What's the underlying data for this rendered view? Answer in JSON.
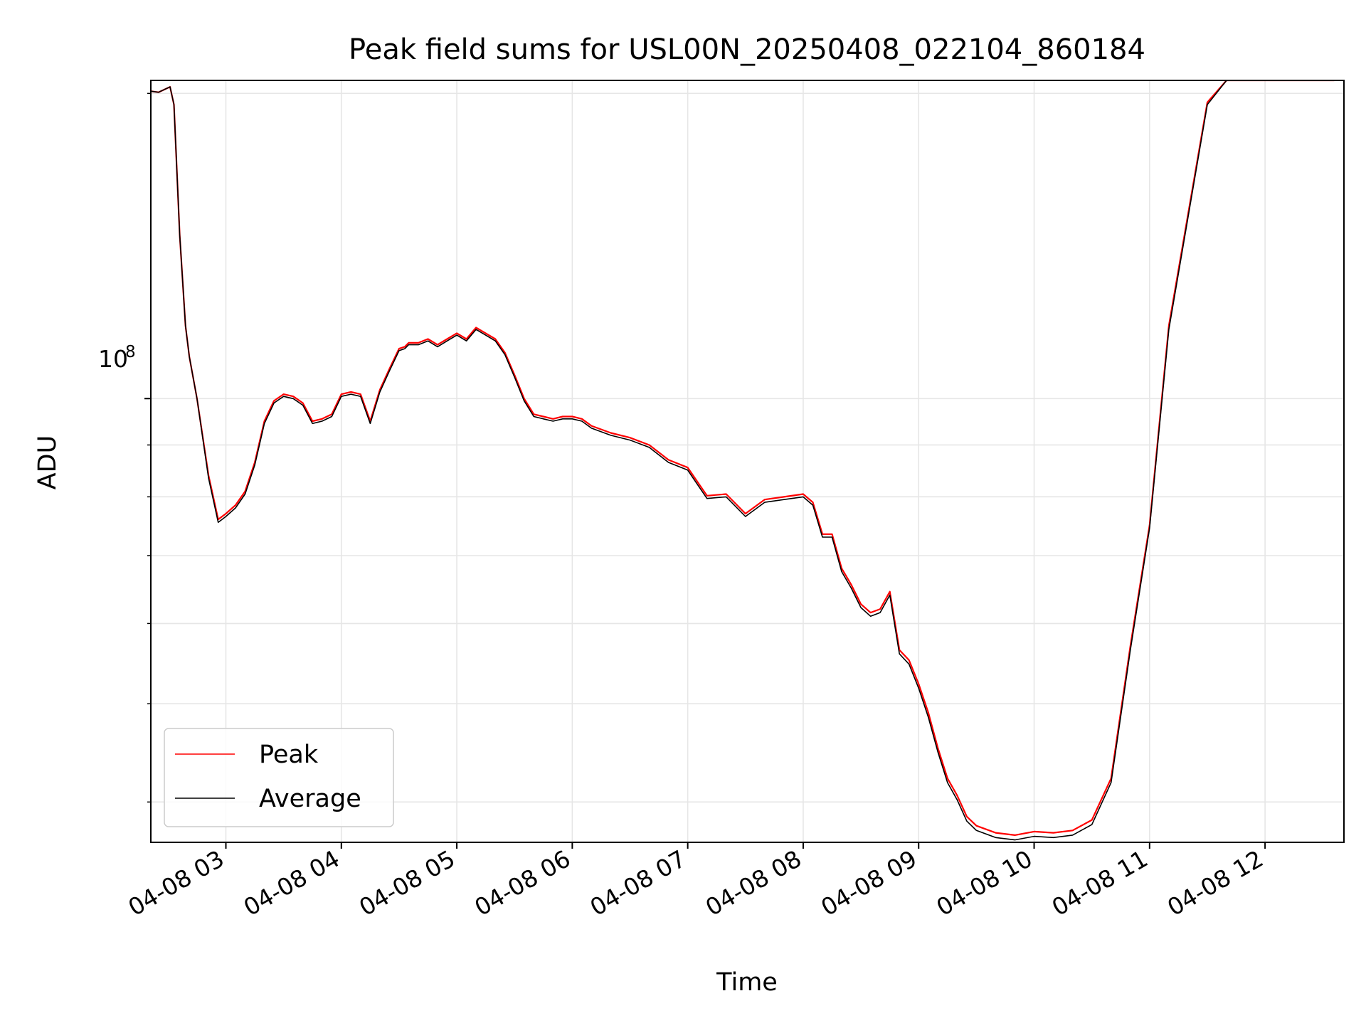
{
  "chart_data": {
    "type": "line",
    "title": "Peak field sums for USL00N_20250408_022104_860184",
    "xlabel": "Time",
    "ylabel": "ADU",
    "y_scale": "log",
    "y_tick_label": {
      "base": "10",
      "exponent": "8",
      "value": 100000000
    },
    "ylim": [
      36500000,
      206000000
    ],
    "xlim": [
      "2025-04-08 02:21",
      "2025-04-08 12:41"
    ],
    "x_tick_labels": [
      "04-08 03",
      "04-08 04",
      "04-08 05",
      "04-08 06",
      "04-08 07",
      "04-08 08",
      "04-08 09",
      "04-08 10",
      "04-08 11",
      "04-08 12"
    ],
    "x_ticks": [
      "2025-04-08 03:00",
      "2025-04-08 04:00",
      "2025-04-08 05:00",
      "2025-04-08 06:00",
      "2025-04-08 07:00",
      "2025-04-08 08:00",
      "2025-04-08 09:00",
      "2025-04-08 10:00",
      "2025-04-08 11:00",
      "2025-04-08 12:00"
    ],
    "grid": true,
    "legend_position": "lower-left",
    "x": [
      "2025-04-08 02:21",
      "2025-04-08 02:25",
      "2025-04-08 02:31",
      "2025-04-08 02:33",
      "2025-04-08 02:36",
      "2025-04-08 02:39",
      "2025-04-08 02:41",
      "2025-04-08 02:45",
      "2025-04-08 02:51",
      "2025-04-08 02:56",
      "2025-04-08 03:00",
      "2025-04-08 03:05",
      "2025-04-08 03:10",
      "2025-04-08 03:15",
      "2025-04-08 03:20",
      "2025-04-08 03:25",
      "2025-04-08 03:30",
      "2025-04-08 03:35",
      "2025-04-08 03:40",
      "2025-04-08 03:45",
      "2025-04-08 03:50",
      "2025-04-08 03:55",
      "2025-04-08 04:00",
      "2025-04-08 04:05",
      "2025-04-08 04:10",
      "2025-04-08 04:15",
      "2025-04-08 04:20",
      "2025-04-08 04:25",
      "2025-04-08 04:30",
      "2025-04-08 04:33",
      "2025-04-08 04:35",
      "2025-04-08 04:40",
      "2025-04-08 04:45",
      "2025-04-08 04:50",
      "2025-04-08 04:55",
      "2025-04-08 05:00",
      "2025-04-08 05:05",
      "2025-04-08 05:10",
      "2025-04-08 05:15",
      "2025-04-08 05:20",
      "2025-04-08 05:25",
      "2025-04-08 05:30",
      "2025-04-08 05:35",
      "2025-04-08 05:40",
      "2025-04-08 05:45",
      "2025-04-08 05:50",
      "2025-04-08 05:55",
      "2025-04-08 06:00",
      "2025-04-08 06:05",
      "2025-04-08 06:10",
      "2025-04-08 06:20",
      "2025-04-08 06:30",
      "2025-04-08 06:40",
      "2025-04-08 06:50",
      "2025-04-08 07:00",
      "2025-04-08 07:10",
      "2025-04-08 07:20",
      "2025-04-08 07:30",
      "2025-04-08 07:40",
      "2025-04-08 07:50",
      "2025-04-08 08:00",
      "2025-04-08 08:05",
      "2025-04-08 08:10",
      "2025-04-08 08:15",
      "2025-04-08 08:20",
      "2025-04-08 08:25",
      "2025-04-08 08:30",
      "2025-04-08 08:35",
      "2025-04-08 08:40",
      "2025-04-08 08:45",
      "2025-04-08 08:50",
      "2025-04-08 08:55",
      "2025-04-08 09:00",
      "2025-04-08 09:05",
      "2025-04-08 09:10",
      "2025-04-08 09:15",
      "2025-04-08 09:20",
      "2025-04-08 09:25",
      "2025-04-08 09:30",
      "2025-04-08 09:40",
      "2025-04-08 09:50",
      "2025-04-08 10:00",
      "2025-04-08 10:10",
      "2025-04-08 10:20",
      "2025-04-08 10:30",
      "2025-04-08 10:40",
      "2025-04-08 10:50",
      "2025-04-08 11:00",
      "2025-04-08 11:10",
      "2025-04-08 11:20",
      "2025-04-08 11:30",
      "2025-04-08 11:40",
      "2025-04-08 11:50",
      "2025-04-08 12:00",
      "2025-04-08 12:05",
      "2025-04-08 12:10",
      "2025-04-08 12:15",
      "2025-04-08 12:20",
      "2025-04-08 12:25",
      "2025-04-08 12:30",
      "2025-04-08 12:35",
      "2025-04-08 12:36"
    ],
    "series": [
      {
        "name": "Peak",
        "color": "#ff0000",
        "values": [
          201000000,
          200500000,
          203000000,
          195000000,
          145000000,
          118000000,
          110000000,
          100000000,
          84000000,
          76000000,
          77000000,
          78500000,
          81000000,
          86500000,
          95000000,
          99500000,
          101000000,
          100500000,
          99000000,
          95000000,
          95500000,
          96500000,
          101000000,
          101500000,
          101000000,
          95000000,
          102000000,
          107000000,
          112000000,
          112500000,
          113500000,
          113500000,
          114500000,
          113000000,
          114500000,
          116000000,
          114500000,
          117500000,
          116000000,
          114500000,
          111000000,
          105500000,
          100000000,
          96500000,
          96000000,
          95500000,
          96000000,
          96000000,
          95500000,
          94000000,
          92500000,
          91500000,
          90000000,
          87000000,
          85500000,
          80200000,
          80500000,
          77000000,
          79500000,
          80000000,
          80500000,
          79000000,
          73500000,
          73500000,
          68000000,
          65500000,
          62700000,
          61500000,
          62000000,
          64500000,
          56500000,
          55200000,
          52300000,
          49000000,
          45200000,
          42200000,
          40600000,
          38700000,
          37900000,
          37300000,
          37100000,
          37400000,
          37300000,
          37500000,
          38400000,
          42200000,
          57000000,
          75000000,
          118000000,
          152000000,
          196000000,
          206000000,
          206000000,
          206000000,
          206000000,
          206000000,
          206000000,
          206000000,
          206000000,
          206000000,
          206000000,
          206000000
        ]
      },
      {
        "name": "Average",
        "color": "#000000",
        "values": [
          201000000,
          200500000,
          203000000,
          195000000,
          145000000,
          118000000,
          110000000,
          100000000,
          83500000,
          75500000,
          76500000,
          78000000,
          80500000,
          86000000,
          94500000,
          99000000,
          100500000,
          100000000,
          98500000,
          94500000,
          95000000,
          96000000,
          100500000,
          101000000,
          100500000,
          94500000,
          101500000,
          106500000,
          111500000,
          112000000,
          113000000,
          113000000,
          114000000,
          112500000,
          114000000,
          115500000,
          114000000,
          117000000,
          115500000,
          114000000,
          110500000,
          105000000,
          99500000,
          96000000,
          95500000,
          95000000,
          95500000,
          95500000,
          95000000,
          93500000,
          92000000,
          91000000,
          89500000,
          86500000,
          85000000,
          79700000,
          80000000,
          76500000,
          79000000,
          79500000,
          80000000,
          78500000,
          73000000,
          73000000,
          67500000,
          65000000,
          62200000,
          61000000,
          61500000,
          64000000,
          56000000,
          54700000,
          51800000,
          48500000,
          44800000,
          41800000,
          40200000,
          38300000,
          37500000,
          36900000,
          36700000,
          37000000,
          36900000,
          37100000,
          38000000,
          41800000,
          56500000,
          74500000,
          117000000,
          151000000,
          195000000,
          206000000,
          206000000,
          206000000,
          206000000,
          206000000,
          206000000,
          206000000,
          206000000,
          206000000,
          206000000,
          206000000
        ]
      }
    ]
  }
}
